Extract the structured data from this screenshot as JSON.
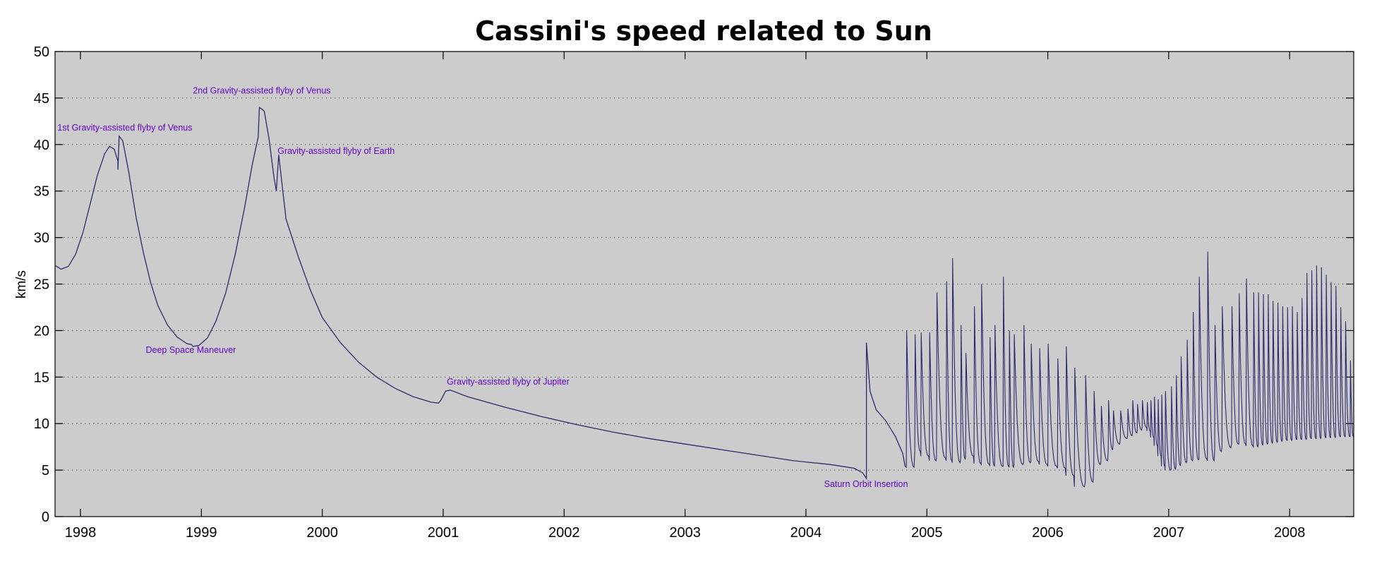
{
  "chart_data": {
    "type": "line",
    "title": "Cassini's speed related to Sun",
    "xlabel": "",
    "ylabel": "km/s",
    "xlim": [
      1997.79,
      2008.53
    ],
    "ylim": [
      0,
      50
    ],
    "x_ticks": [
      1998,
      1999,
      2000,
      2001,
      2002,
      2003,
      2004,
      2005,
      2006,
      2007,
      2008
    ],
    "y_ticks": [
      0,
      5,
      10,
      15,
      20,
      25,
      30,
      35,
      40,
      45,
      50
    ],
    "grid": "horizontal dotted",
    "colors": {
      "line": "#2b2a6e",
      "annotation": "#6600cc",
      "plot_bg": "#cccccc",
      "grid": "#555555"
    },
    "annotations": [
      {
        "text": "1st Gravity-assisted flyby of Venus",
        "x": 1997.81,
        "y": 41.5
      },
      {
        "text": "2nd Gravity-assisted flyby of Venus",
        "x": 1998.93,
        "y": 45.5
      },
      {
        "text": "Gravity-assisted flyby of Earth",
        "x": 1999.63,
        "y": 39.0
      },
      {
        "text": "Deep Space Maneuver",
        "x": 1998.54,
        "y": 17.6
      },
      {
        "text": "Gravity-assisted flyby of Jupiter",
        "x": 2001.03,
        "y": 14.2
      },
      {
        "text": "Saturn Orbit Insertion",
        "x": 2004.15,
        "y": 3.2
      }
    ],
    "series": [
      {
        "values_cruise": [
          [
            1997.79,
            27.0
          ],
          [
            1997.84,
            26.6
          ],
          [
            1997.9,
            26.9
          ],
          [
            1997.96,
            28.2
          ],
          [
            1998.02,
            30.5
          ],
          [
            1998.08,
            33.6
          ],
          [
            1998.14,
            36.7
          ],
          [
            1998.2,
            39.0
          ],
          [
            1998.24,
            39.8
          ],
          [
            1998.28,
            39.5
          ],
          [
            1998.31,
            38.2
          ],
          [
            1998.31,
            37.3
          ],
          [
            1998.32,
            40.9
          ],
          [
            1998.35,
            40.4
          ],
          [
            1998.4,
            37.0
          ],
          [
            1998.46,
            32.2
          ],
          [
            1998.52,
            28.4
          ],
          [
            1998.58,
            25.2
          ],
          [
            1998.64,
            22.7
          ],
          [
            1998.72,
            20.6
          ],
          [
            1998.8,
            19.3
          ],
          [
            1998.88,
            18.6
          ],
          [
            1998.92,
            18.5
          ],
          [
            1998.93,
            18.3
          ],
          [
            1998.98,
            18.4
          ],
          [
            1999.05,
            19.2
          ],
          [
            1999.12,
            21.0
          ],
          [
            1999.2,
            24.0
          ],
          [
            1999.28,
            28.2
          ],
          [
            1999.36,
            33.4
          ],
          [
            1999.42,
            37.8
          ],
          [
            1999.47,
            40.8
          ],
          [
            1999.48,
            44.0
          ],
          [
            1999.52,
            43.6
          ],
          [
            1999.56,
            40.6
          ],
          [
            1999.6,
            36.5
          ],
          [
            1999.62,
            35.0
          ],
          [
            1999.64,
            38.9
          ],
          [
            1999.7,
            32.0
          ],
          [
            1999.8,
            28.0
          ],
          [
            1999.9,
            24.4
          ],
          [
            2000.0,
            21.4
          ],
          [
            2000.15,
            18.7
          ],
          [
            2000.3,
            16.6
          ],
          [
            2000.45,
            15.0
          ],
          [
            2000.6,
            13.8
          ],
          [
            2000.75,
            12.9
          ],
          [
            2000.9,
            12.3
          ],
          [
            2000.96,
            12.2
          ],
          [
            2000.98,
            12.5
          ],
          [
            2001.02,
            13.5
          ],
          [
            2001.06,
            13.6
          ],
          [
            2001.2,
            12.9
          ],
          [
            2001.5,
            11.8
          ],
          [
            2001.8,
            10.8
          ],
          [
            2002.1,
            9.9
          ],
          [
            2002.4,
            9.1
          ],
          [
            2002.7,
            8.4
          ],
          [
            2003.0,
            7.8
          ],
          [
            2003.3,
            7.2
          ],
          [
            2003.6,
            6.6
          ],
          [
            2003.9,
            6.0
          ],
          [
            2004.2,
            5.6
          ],
          [
            2004.4,
            5.2
          ],
          [
            2004.47,
            4.7
          ],
          [
            2004.5,
            4.1
          ],
          [
            2004.5,
            18.7
          ],
          [
            2004.53,
            13.5
          ],
          [
            2004.58,
            11.5
          ],
          [
            2004.66,
            10.3
          ],
          [
            2004.74,
            8.6
          ],
          [
            2004.8,
            6.8
          ],
          [
            2004.82,
            5.4
          ]
        ],
        "saturn_orbits": [
          [
            2004.83,
            20.0,
            5.3
          ],
          [
            2004.9,
            19.6,
            7.0
          ],
          [
            2004.95,
            19.8,
            6.5
          ],
          [
            2005.02,
            19.8,
            6.0
          ],
          [
            2005.08,
            24.1,
            6.3
          ],
          [
            2005.16,
            25.3,
            6.0
          ],
          [
            2005.21,
            27.8,
            5.8
          ],
          [
            2005.28,
            20.6,
            6.2
          ],
          [
            2005.32,
            17.6,
            6.5
          ],
          [
            2005.39,
            22.6,
            5.7
          ],
          [
            2005.45,
            25.0,
            5.6
          ],
          [
            2005.52,
            19.3,
            5.5
          ],
          [
            2005.56,
            20.6,
            5.4
          ],
          [
            2005.63,
            25.8,
            5.4
          ],
          [
            2005.68,
            20.0,
            5.3
          ],
          [
            2005.72,
            19.6,
            5.6
          ],
          [
            2005.8,
            20.6,
            5.8
          ],
          [
            2005.86,
            18.6,
            5.9
          ],
          [
            2005.93,
            18.1,
            5.6
          ],
          [
            2006.0,
            18.6,
            5.4
          ],
          [
            2006.08,
            17.0,
            5.2
          ],
          [
            2006.15,
            18.3,
            4.4
          ],
          [
            2006.22,
            16.0,
            3.2
          ],
          [
            2006.31,
            15.2,
            3.7
          ],
          [
            2006.38,
            13.5,
            5.6
          ],
          [
            2006.44,
            11.9,
            6.0
          ],
          [
            2006.5,
            12.5,
            7.2
          ],
          [
            2006.54,
            11.4,
            7.8
          ],
          [
            2006.6,
            11.4,
            8.4
          ],
          [
            2006.66,
            11.6,
            8.7
          ],
          [
            2006.7,
            12.5,
            9.0
          ],
          [
            2006.74,
            12.1,
            9.3
          ],
          [
            2006.78,
            12.5,
            9.6
          ],
          [
            2006.82,
            12.3,
            9.2
          ],
          [
            2006.85,
            12.5,
            8.5
          ],
          [
            2006.88,
            12.9,
            7.6
          ],
          [
            2006.91,
            12.6,
            6.5
          ],
          [
            2006.94,
            13.1,
            5.4
          ],
          [
            2006.97,
            13.5,
            5.0
          ],
          [
            2007.02,
            14.0,
            5.1
          ],
          [
            2007.06,
            15.2,
            5.5
          ],
          [
            2007.1,
            17.2,
            5.8
          ],
          [
            2007.15,
            19.0,
            6.0
          ],
          [
            2007.2,
            22.0,
            6.1
          ],
          [
            2007.25,
            25.8,
            6.2
          ],
          [
            2007.32,
            28.5,
            6.0
          ],
          [
            2007.38,
            20.6,
            7.0
          ],
          [
            2007.44,
            22.6,
            7.4
          ],
          [
            2007.52,
            22.6,
            7.8
          ],
          [
            2007.58,
            24.0,
            7.8
          ],
          [
            2007.64,
            25.6,
            7.6
          ],
          [
            2007.7,
            24.1,
            7.5
          ],
          [
            2007.74,
            24.1,
            7.7
          ],
          [
            2007.78,
            23.9,
            7.8
          ],
          [
            2007.82,
            23.9,
            7.9
          ],
          [
            2007.86,
            23.2,
            8.0
          ],
          [
            2007.9,
            23.0,
            8.1
          ],
          [
            2007.94,
            22.6,
            8.2
          ],
          [
            2007.98,
            22.5,
            8.2
          ],
          [
            2008.02,
            22.6,
            8.3
          ],
          [
            2008.06,
            22.0,
            8.3
          ],
          [
            2008.1,
            23.5,
            8.3
          ],
          [
            2008.14,
            26.2,
            8.4
          ],
          [
            2008.18,
            26.5,
            8.4
          ],
          [
            2008.22,
            27.0,
            8.4
          ],
          [
            2008.26,
            26.8,
            8.5
          ],
          [
            2008.3,
            26.0,
            8.5
          ],
          [
            2008.34,
            25.2,
            8.5
          ],
          [
            2008.38,
            24.8,
            8.6
          ],
          [
            2008.42,
            22.5,
            8.6
          ],
          [
            2008.46,
            21.0,
            8.6
          ],
          [
            2008.5,
            16.8,
            8.6
          ]
        ]
      }
    ]
  }
}
